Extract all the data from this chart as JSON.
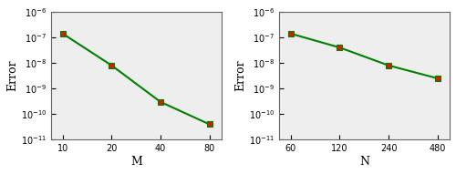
{
  "left": {
    "x": [
      10,
      20,
      40,
      80
    ],
    "y": [
      1.4e-07,
      8e-09,
      3e-10,
      4e-11
    ],
    "xlabel": "M",
    "ylabel": "Error",
    "xlim": [
      8.5,
      95
    ],
    "ylim": [
      1e-11,
      1e-06
    ],
    "xticks": [
      10,
      20,
      40,
      80
    ]
  },
  "right": {
    "x": [
      60,
      120,
      240,
      480
    ],
    "y": [
      1.4e-07,
      4e-08,
      8e-09,
      2.5e-09
    ],
    "xlabel": "N",
    "ylabel": "Error",
    "xlim": [
      51,
      570
    ],
    "ylim": [
      1e-11,
      1e-06
    ],
    "xticks": [
      60,
      120,
      240,
      480
    ]
  },
  "line_color": "#008000",
  "marker_color": "#cc2200",
  "marker": "s",
  "marker_size": 5,
  "linewidth": 1.5,
  "background_color": "#eeeeee",
  "font_family": "serif",
  "yticks": [
    1e-11,
    1e-10,
    1e-09,
    1e-08,
    1e-07,
    1e-06
  ]
}
